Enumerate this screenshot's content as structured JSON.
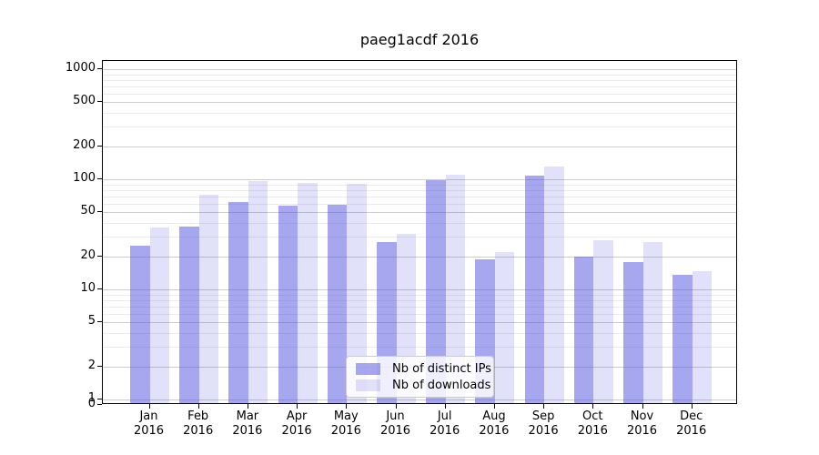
{
  "chart_data": {
    "type": "bar",
    "title": "paeg1acdf 2016",
    "categories": [
      "Jan 2016",
      "Feb 2016",
      "Mar 2016",
      "Apr 2016",
      "May 2016",
      "Jun 2016",
      "Jul 2016",
      "Aug 2016",
      "Sep 2016",
      "Oct 2016",
      "Nov 2016",
      "Dec 2016"
    ],
    "series": [
      {
        "name": "Nb of distinct IPs",
        "color": "rgba(80,80,225,0.50)",
        "values": [
          24,
          36,
          60,
          56,
          57,
          26,
          95,
          18,
          103,
          19,
          17,
          13
        ]
      },
      {
        "name": "Nb of downloads",
        "color": "rgba(80,80,225,0.17)",
        "values": [
          35,
          70,
          93,
          90,
          88,
          31,
          105,
          21,
          125,
          27,
          26,
          14
        ]
      }
    ],
    "xlabel": "",
    "ylabel": "",
    "yscale": "symlog",
    "ylim": [
      0,
      1190
    ],
    "yticks": [
      0,
      1,
      2,
      5,
      10,
      20,
      50,
      100,
      200,
      500,
      1000
    ],
    "yticks_minor": [
      3,
      4,
      6,
      7,
      8,
      9,
      30,
      40,
      60,
      70,
      80,
      90,
      300,
      400,
      600,
      700,
      800,
      900
    ],
    "grid": "on",
    "legend_position": "lower center",
    "colors": {
      "grid_major": "#cccccc",
      "grid_minor": "#ebebeb",
      "axis": "#000000",
      "background": "#ffffff"
    }
  }
}
